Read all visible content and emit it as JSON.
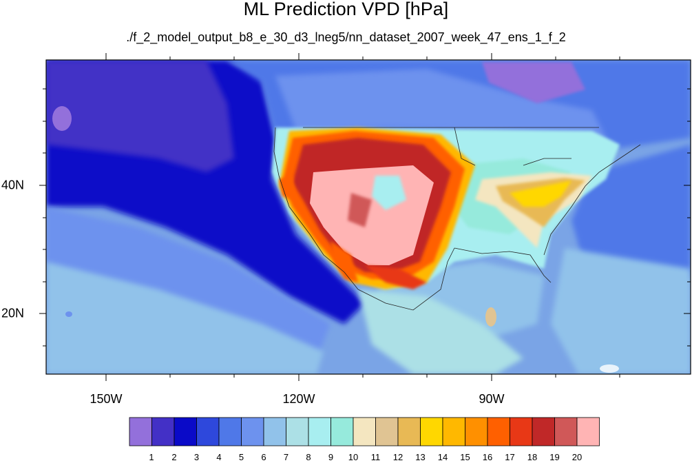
{
  "title": "ML Prediction VPD [hPa]",
  "subtitle": "./f_2_model_output_b8_e_30_d3_lneg5/nn_dataset_2007_week_47_ens_1_f_2",
  "axes": {
    "x_labels": [
      "150W",
      "120W",
      "90W"
    ],
    "y_labels": [
      "40N",
      "20N"
    ]
  },
  "colorbar": {
    "labels": [
      "1",
      "2",
      "3",
      "4",
      "5",
      "6",
      "7",
      "8",
      "9",
      "10",
      "11",
      "12",
      "13",
      "14",
      "15",
      "16",
      "17",
      "18",
      "19",
      "20"
    ],
    "colors": [
      "#9370db",
      "#4330c6",
      "#0a0ac8",
      "#2e48dc",
      "#4f78e8",
      "#6d92ee",
      "#91c2ea",
      "#ace0e6",
      "#a8eef0",
      "#96eadc",
      "#f4e6c0",
      "#e0c493",
      "#e8b955",
      "#ffd700",
      "#ffb800",
      "#ff9000",
      "#ff6000",
      "#e83816",
      "#c02828",
      "#d05858",
      "#ffb4b4"
    ]
  },
  "colors": {
    "ocean_deep": "#1818c8",
    "ocean_mid": "#3a5ad8",
    "ocean_light": "#7aa4e6",
    "land_cool": "#a6e2ea",
    "land_warm": "#f4e6c0",
    "hot_core": "#ffb4b4"
  }
}
